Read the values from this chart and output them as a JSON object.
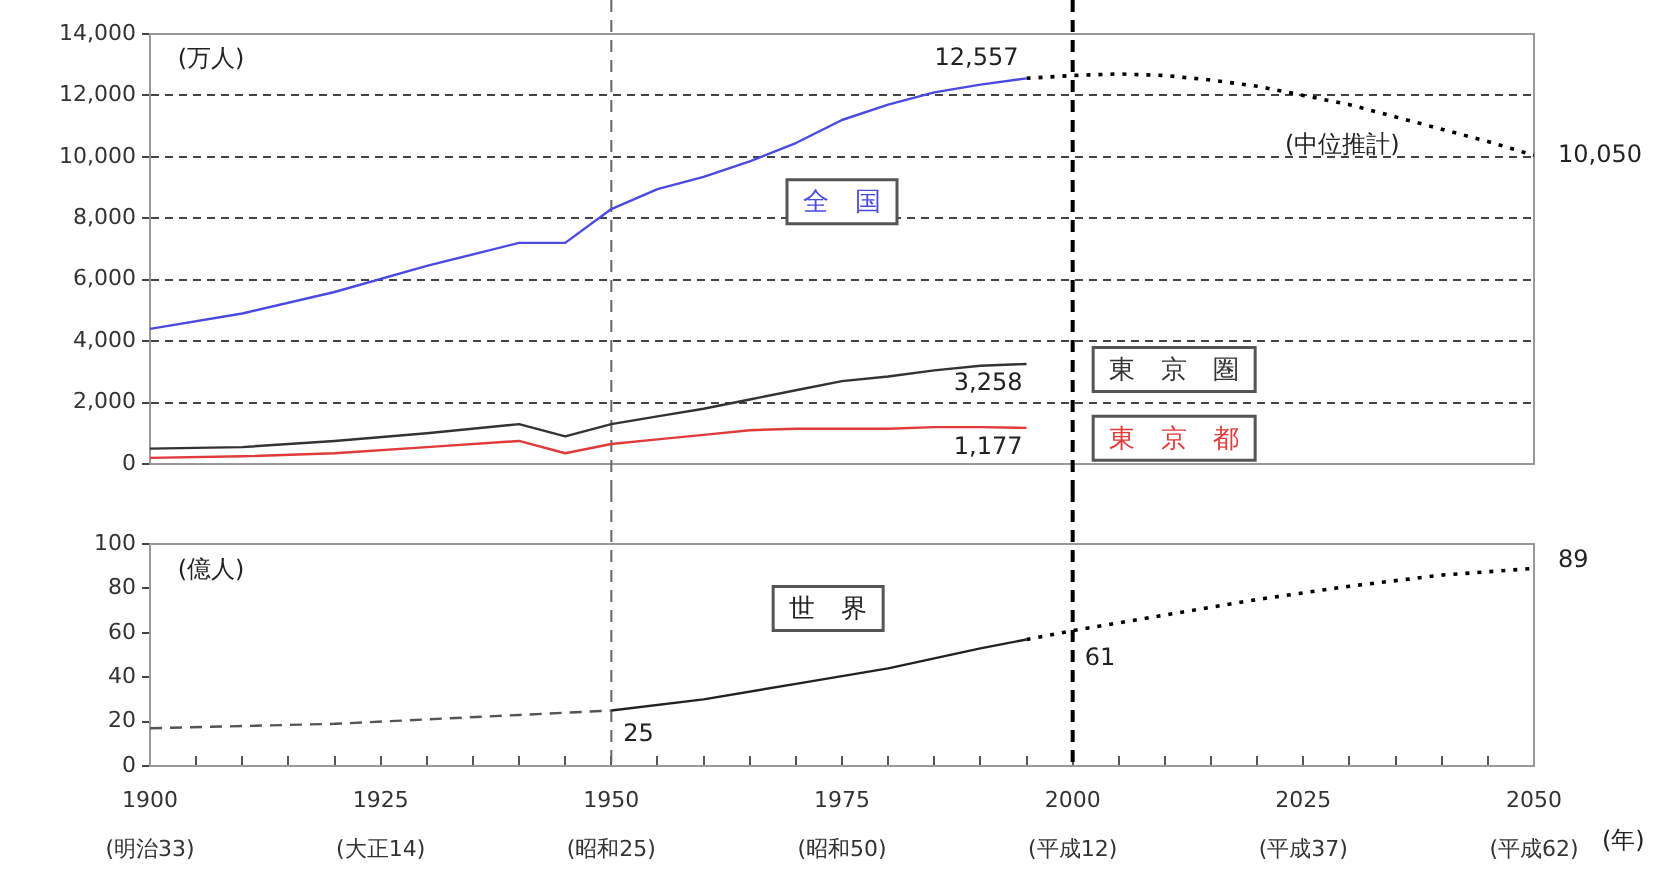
{
  "chart_data": [
    {
      "type": "line",
      "marker": "none",
      "grid": "y",
      "legend": false,
      "tick_labels": "y",
      "xlim": [
        1900,
        2050
      ],
      "ylim": [
        0,
        14000
      ],
      "yticks": [
        0,
        {
          "value": 2000,
          "label": "2,000"
        },
        {
          "value": 4000,
          "label": "4,000"
        },
        {
          "value": 6000,
          "label": "6,000"
        },
        {
          "value": 8000,
          "label": "8,000"
        },
        {
          "value": 10000,
          "label": "10,000"
        },
        {
          "value": 12000,
          "label": "12,000"
        },
        {
          "value": 14000,
          "label": "14,000"
        }
      ],
      "series": [
        {
          "name": "全　国",
          "color": "#4a4ae0",
          "x": [
            1900,
            1910,
            1920,
            1930,
            1940,
            1945,
            1950,
            1955,
            1960,
            1965,
            1970,
            1975,
            1980,
            1985,
            1990,
            1995
          ],
          "values": [
            4400,
            4900,
            5600,
            6450,
            7200,
            7200,
            8300,
            8950,
            9350,
            9850,
            10450,
            11200,
            11700,
            12100,
            12350,
            12557
          ]
        },
        {
          "color": "#000000",
          "line_style": "dotted",
          "x": [
            1995,
            2000,
            2005,
            2010,
            2015,
            2020,
            2025,
            2030,
            2035,
            2040,
            2045,
            2050
          ],
          "values": [
            12557,
            12650,
            12700,
            12650,
            12500,
            12300,
            12000,
            11700,
            11300,
            10900,
            10500,
            10050
          ]
        },
        {
          "name": "東　京　圏",
          "color": "#333333",
          "x": [
            1900,
            1910,
            1920,
            1930,
            1940,
            1945,
            1950,
            1955,
            1960,
            1965,
            1970,
            1975,
            1980,
            1985,
            1990,
            1995
          ],
          "values": [
            500,
            550,
            750,
            1000,
            1300,
            900,
            1300,
            1550,
            1800,
            2100,
            2400,
            2700,
            2850,
            3050,
            3200,
            3258
          ]
        },
        {
          "name": "東　京　都",
          "color": "#e03a3a",
          "x": [
            1900,
            1910,
            1920,
            1930,
            1940,
            1945,
            1950,
            1955,
            1960,
            1965,
            1970,
            1975,
            1980,
            1985,
            1990,
            1995
          ],
          "values": [
            200,
            250,
            350,
            550,
            750,
            350,
            650,
            800,
            950,
            1100,
            1150,
            1150,
            1150,
            1200,
            1200,
            1177
          ]
        }
      ],
      "ref_lines": [
        {
          "axis": "x",
          "value": 1950,
          "color": "#666666",
          "line_style": "dashed"
        },
        {
          "axis": "x",
          "value": 2000,
          "color": "#000000",
          "line_style": "dashed"
        }
      ],
      "annotations": [
        "(万人)",
        {
          "text": "12,557",
          "x": 1995,
          "y": 12557
        },
        "(中位推計)",
        {
          "text": "10,050",
          "x": 2050,
          "y": 10050
        },
        {
          "text": "3,258",
          "x": 1995,
          "y": 3258
        },
        {
          "text": "1,177",
          "x": 1995,
          "y": 1177
        }
      ]
    },
    {
      "type": "line",
      "marker": "none",
      "grid": false,
      "legend": false,
      "xlabel": "(年)",
      "xlim": [
        1900,
        2050
      ],
      "ylim": [
        0,
        100
      ],
      "yticks": [
        0,
        20,
        40,
        60,
        80,
        100
      ],
      "xticks": [
        1900,
        {
          "value": 1905,
          "label": null
        },
        {
          "value": 1910,
          "label": null
        },
        {
          "value": 1915,
          "label": null
        },
        {
          "value": 1920,
          "label": null
        },
        1925,
        {
          "value": 1930,
          "label": null
        },
        {
          "value": 1935,
          "label": null
        },
        {
          "value": 1940,
          "label": null
        },
        {
          "value": 1945,
          "label": null
        },
        1950,
        {
          "value": 1955,
          "label": null
        },
        {
          "value": 1960,
          "label": null
        },
        {
          "value": 1965,
          "label": null
        },
        {
          "value": 1970,
          "label": null
        },
        1975,
        {
          "value": 1980,
          "label": null
        },
        {
          "value": 1985,
          "label": null
        },
        {
          "value": 1990,
          "label": null
        },
        {
          "value": 1995,
          "label": null
        },
        2000,
        {
          "value": 2005,
          "label": null
        },
        {
          "value": 2010,
          "label": null
        },
        {
          "value": 2015,
          "label": null
        },
        {
          "value": 2020,
          "label": null
        },
        2025,
        {
          "value": 2030,
          "label": null
        },
        {
          "value": 2035,
          "label": null
        },
        {
          "value": 2040,
          "label": null
        },
        {
          "value": 2045,
          "label": null
        },
        2050
      ],
      "series": [
        {
          "color": "#555555",
          "line_style": "dashed",
          "x": [
            1900,
            1910,
            1920,
            1930,
            1940,
            1950
          ],
          "values": [
            17,
            18,
            19,
            21,
            23,
            25
          ]
        },
        {
          "name": "世　界",
          "color": "#222222",
          "x": [
            1950,
            1960,
            1970,
            1980,
            1990,
            1995
          ],
          "values": [
            25,
            30,
            37,
            44,
            53,
            57
          ]
        },
        {
          "color": "#000000",
          "line_style": "dotted",
          "x": [
            1995,
            2000,
            2010,
            2020,
            2030,
            2040,
            2050
          ],
          "values": [
            57,
            61,
            68,
            75,
            81,
            86,
            89
          ]
        }
      ],
      "ref_lines": [
        {
          "axis": "x",
          "value": 1950,
          "color": "#666666",
          "line_style": "dashed"
        },
        {
          "axis": "x",
          "value": 2000,
          "color": "#000000",
          "line_style": "dashed"
        }
      ],
      "annotations": [
        "(億人)",
        {
          "text": "25",
          "x": 1950,
          "y": 25
        },
        {
          "text": "61",
          "x": 2000,
          "y": 61
        },
        {
          "text": "89",
          "x": 2050,
          "y": 89
        },
        "(明治33)",
        "(大正14)",
        "(昭和25)",
        "(昭和50)",
        "(平成12)",
        "(平成37)",
        "(平成62)"
      ]
    }
  ]
}
